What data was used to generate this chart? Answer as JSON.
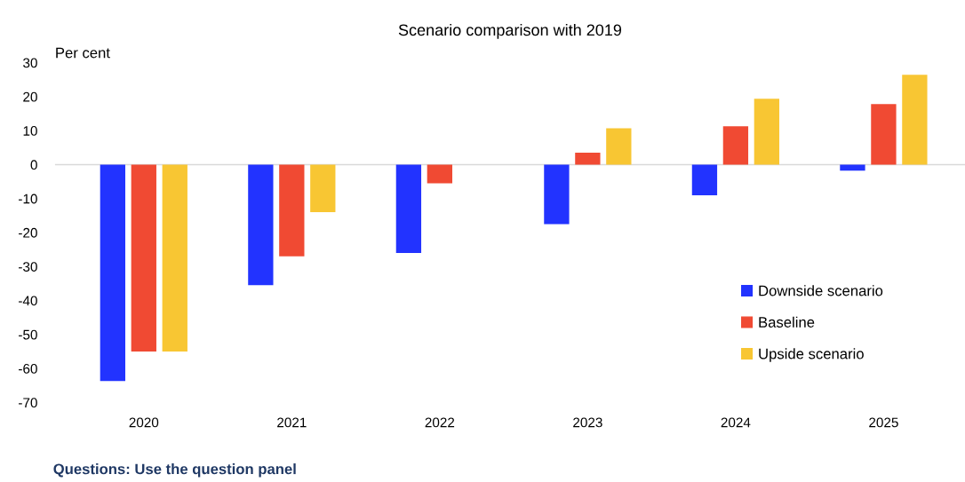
{
  "chart_data": {
    "type": "bar",
    "title": "Scenario comparison with 2019",
    "ylabel": "Per cent",
    "categories": [
      "2020",
      "2021",
      "2022",
      "2023",
      "2024",
      "2025"
    ],
    "series": [
      {
        "name": "Downside scenario",
        "color": "#2233ff",
        "values": [
          -63.7,
          -35.5,
          -26,
          -17.5,
          -9,
          -1.8
        ]
      },
      {
        "name": "Baseline",
        "color": "#f04a33",
        "values": [
          -55,
          -27,
          -5.5,
          3.5,
          11.3,
          17.8
        ]
      },
      {
        "name": "Upside scenario",
        "color": "#f8c633",
        "values": [
          -55,
          -14,
          null,
          10.7,
          19.4,
          26.4
        ]
      }
    ],
    "ylim": [
      -70,
      30
    ],
    "yticks": [
      -70,
      -60,
      -50,
      -40,
      -30,
      -20,
      -10,
      0,
      10,
      20,
      30
    ],
    "grid": false,
    "legend": "right",
    "ref_lines": [
      {
        "axis": "y",
        "value": 0,
        "color": "#d9d9d9"
      }
    ],
    "annotations": [
      "Questions: Use the question panel"
    ]
  }
}
